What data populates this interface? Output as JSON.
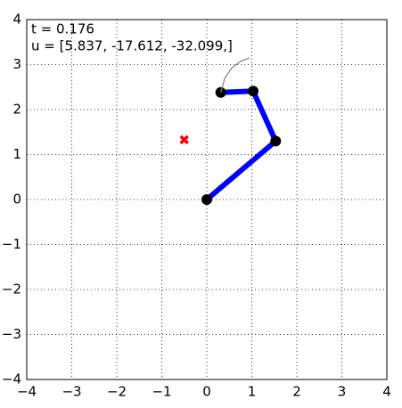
{
  "chart_data": {
    "type": "line",
    "annotations": [
      "t = 0.176",
      "u = [5.837, -17.612, -32.099,]"
    ],
    "series": [
      {
        "color": "#0000ff",
        "marker": "o",
        "marker_color": "#000000",
        "line": true,
        "x": [
          0,
          1.53,
          1.03,
          0.31
        ],
        "values": [
          0,
          1.3,
          2.41,
          2.38
        ]
      },
      {
        "color": "#808080",
        "line": true,
        "x": [
          0.31,
          0.4,
          0.55,
          0.75,
          0.95
        ],
        "values": [
          2.38,
          2.7,
          2.92,
          3.07,
          3.15
        ]
      },
      {
        "color": "#ff0000",
        "marker": "x",
        "line": false,
        "x": [
          -0.5
        ],
        "values": [
          1.33
        ]
      }
    ],
    "xlim": [
      -4,
      4
    ],
    "ylim": [
      -4,
      4
    ],
    "xticks": [
      {
        "value": -4,
        "label": "−4"
      },
      {
        "value": -3,
        "label": "−3"
      },
      {
        "value": -2,
        "label": "−2"
      },
      {
        "value": -1,
        "label": "−1"
      },
      0,
      1,
      2,
      3,
      4
    ],
    "yticks": [
      {
        "value": -4,
        "label": "−4"
      },
      {
        "value": -3,
        "label": "−3"
      },
      {
        "value": -2,
        "label": "−2"
      },
      {
        "value": -1,
        "label": "−1"
      },
      0,
      1,
      2,
      3,
      4
    ],
    "grid": true
  }
}
